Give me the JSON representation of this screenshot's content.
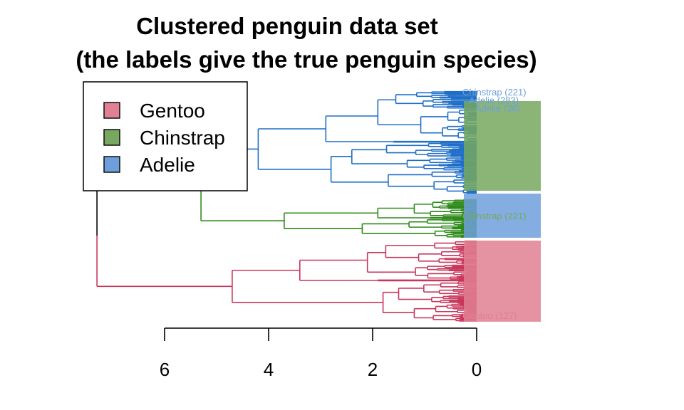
{
  "chart_data": {
    "type": "dendrogram",
    "title": [
      "Clustered penguin data set",
      "(the labels give the true penguin species)"
    ],
    "orientation": "horizontal",
    "xlim": [
      6.0,
      0.0
    ],
    "axis_ticks": [
      6,
      4,
      2,
      0
    ],
    "axis_tick_labels": [
      "6",
      "4",
      "2",
      "0"
    ],
    "root_height": 7.3,
    "legend": {
      "position": "top-left",
      "entries": [
        {
          "label": "Gentoo",
          "color": "#e08093"
        },
        {
          "label": "Chinstrap",
          "color": "#76a85f"
        },
        {
          "label": "Adelie",
          "color": "#6e9fdc"
        }
      ]
    },
    "clusters": [
      {
        "name": "Adelie",
        "branch_color": "#1f6ec8",
        "merge_height": 4.2,
        "subclusters": [
          {
            "merge_height": 2.9,
            "parts": [
              1.9,
              1.6
            ]
          },
          {
            "merge_height": 2.8,
            "parts": [
              2.4,
              1.7
            ]
          }
        ],
        "leaf_label_color": "#6e9fdc",
        "visible_labels": [
          "Chinstrap (221)",
          "Adelie (283)",
          "Adelie (38)"
        ]
      },
      {
        "name": "Chinstrap",
        "branch_color": "#2e8a1a",
        "merge_height": 3.7,
        "subclusters": [
          {
            "merge_height": 1.9,
            "parts": [
              1.2,
              0.9
            ]
          },
          {
            "merge_height": 2.2,
            "parts": [
              1.3,
              0.8
            ]
          }
        ],
        "leaf_label_color": "#76a85f",
        "visible_labels": [
          "Chinstrap (221)"
        ]
      },
      {
        "name": "Gentoo",
        "branch_color": "#c8365a",
        "merge_height": 4.7,
        "subclusters": [
          {
            "merge_height": 3.4,
            "parts": [
              2.1,
              1.9
            ]
          },
          {
            "merge_height": 1.8,
            "parts": [
              1.5,
              1.2
            ]
          }
        ],
        "leaf_label_color": "#e08093",
        "visible_labels": [
          "Gentoo (127)"
        ]
      }
    ],
    "top_merge": {
      "height": 5.3,
      "color": "#000000"
    }
  }
}
